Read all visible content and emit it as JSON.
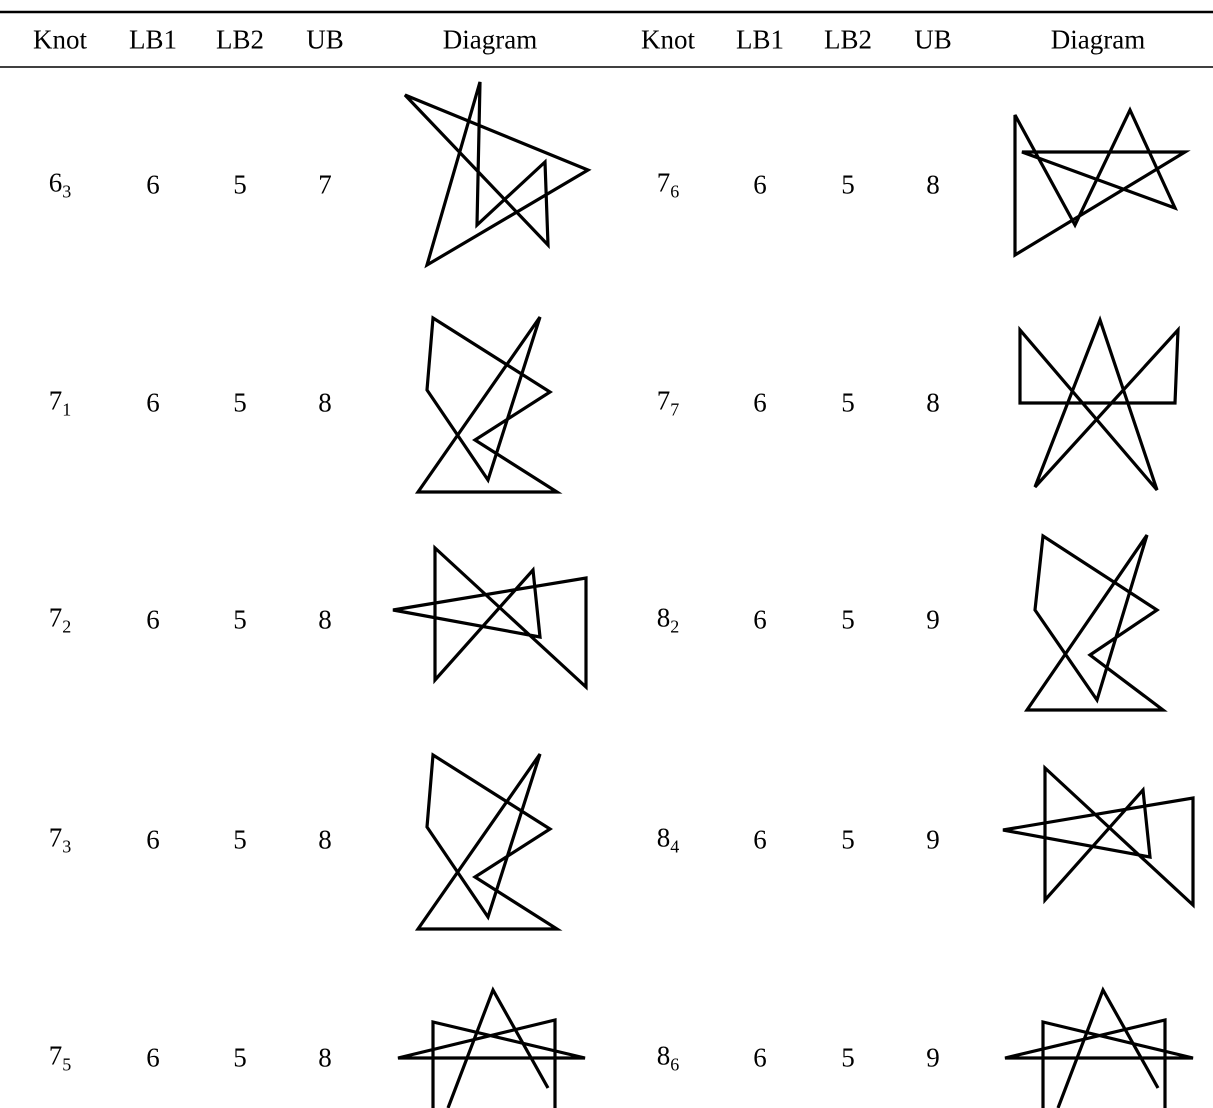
{
  "table": {
    "header": [
      "Knot",
      "LB1",
      "LB2",
      "UB",
      "Diagram",
      "Knot",
      "LB1",
      "LB2",
      "UB",
      "Diagram"
    ],
    "rows": [
      {
        "left": {
          "knot": "6",
          "index": "3",
          "lb1": 6,
          "lb2": 5,
          "ub": 7
        },
        "right": {
          "knot": "7",
          "index": "6",
          "lb1": 6,
          "lb2": 5,
          "ub": 8
        }
      },
      {
        "left": {
          "knot": "7",
          "index": "1",
          "lb1": 6,
          "lb2": 5,
          "ub": 8
        },
        "right": {
          "knot": "7",
          "index": "7",
          "lb1": 6,
          "lb2": 5,
          "ub": 8
        }
      },
      {
        "left": {
          "knot": "7",
          "index": "2",
          "lb1": 6,
          "lb2": 5,
          "ub": 8
        },
        "right": {
          "knot": "8",
          "index": "2",
          "lb1": 6,
          "lb2": 5,
          "ub": 9
        }
      },
      {
        "left": {
          "knot": "7",
          "index": "3",
          "lb1": 6,
          "lb2": 5,
          "ub": 8
        },
        "right": {
          "knot": "8",
          "index": "4",
          "lb1": 6,
          "lb2": 5,
          "ub": 9
        }
      },
      {
        "left": {
          "knot": "7",
          "index": "5",
          "lb1": 6,
          "lb2": 5,
          "ub": 8
        },
        "right": {
          "knot": "8",
          "index": "6",
          "lb1": 6,
          "lb2": 5,
          "ub": 9
        }
      }
    ]
  }
}
